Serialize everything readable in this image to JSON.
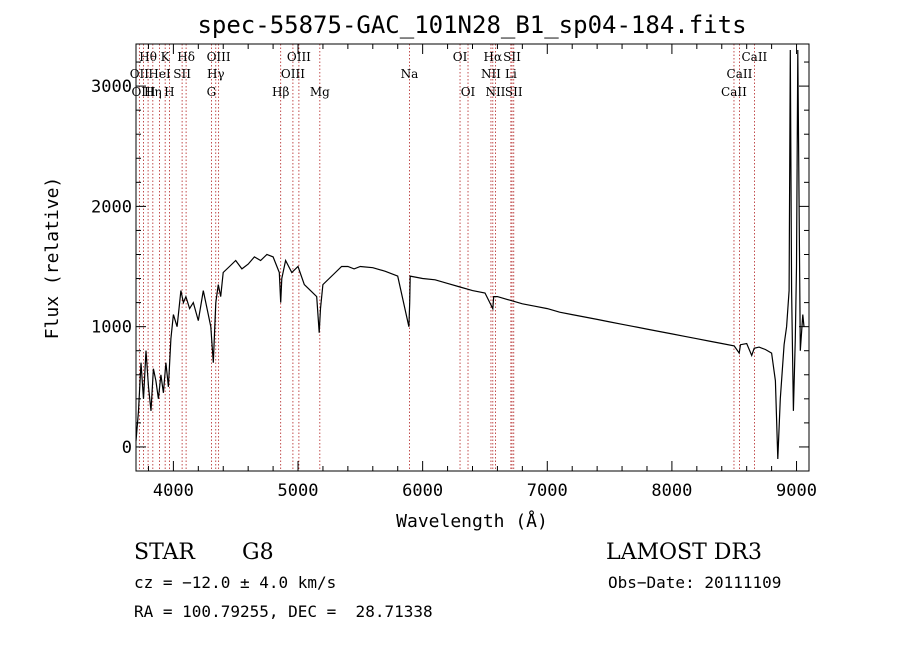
{
  "chart_data": {
    "type": "line",
    "title": "spec-55875-GAC_101N28_B1_sp04-184.fits",
    "xlabel": "Wavelength (Å)",
    "ylabel": "Flux (relative)",
    "xlim": [
      3700,
      9100
    ],
    "ylim": [
      -200,
      3350
    ],
    "xticks": [
      4000,
      5000,
      6000,
      7000,
      8000,
      9000
    ],
    "yticks": [
      0,
      1000,
      2000,
      3000
    ],
    "series": [
      {
        "name": "spectrum",
        "x": [
          3700,
          3720,
          3740,
          3760,
          3780,
          3800,
          3820,
          3840,
          3860,
          3880,
          3900,
          3920,
          3940,
          3960,
          3980,
          4000,
          4030,
          4060,
          4080,
          4100,
          4130,
          4160,
          4200,
          4240,
          4280,
          4300,
          4320,
          4340,
          4360,
          4380,
          4400,
          4450,
          4500,
          4550,
          4600,
          4650,
          4700,
          4750,
          4800,
          4850,
          4861,
          4870,
          4900,
          4950,
          5000,
          5050,
          5100,
          5150,
          5170,
          5180,
          5200,
          5250,
          5300,
          5350,
          5400,
          5450,
          5500,
          5600,
          5700,
          5800,
          5890,
          5896,
          5900,
          6000,
          6100,
          6200,
          6300,
          6400,
          6500,
          6563,
          6570,
          6600,
          6700,
          6800,
          6900,
          7000,
          7100,
          7200,
          7300,
          7400,
          7500,
          7600,
          7700,
          7800,
          7900,
          8000,
          8100,
          8200,
          8300,
          8400,
          8500,
          8540,
          8550,
          8600,
          8640,
          8660,
          8700,
          8750,
          8800,
          8830,
          8850,
          8870,
          8900,
          8920,
          8940,
          8950,
          8960,
          8975,
          8990,
          9000,
          9010,
          9030,
          9050,
          9060
        ],
        "y": [
          50,
          300,
          700,
          400,
          800,
          500,
          300,
          650,
          550,
          400,
          600,
          450,
          700,
          500,
          900,
          1100,
          1000,
          1300,
          1200,
          1250,
          1150,
          1200,
          1050,
          1300,
          1100,
          1000,
          700,
          1200,
          1350,
          1250,
          1450,
          1500,
          1550,
          1480,
          1520,
          1580,
          1550,
          1600,
          1580,
          1450,
          1200,
          1400,
          1550,
          1450,
          1500,
          1350,
          1300,
          1250,
          950,
          1150,
          1350,
          1400,
          1450,
          1500,
          1500,
          1480,
          1500,
          1490,
          1460,
          1420,
          1000,
          1200,
          1420,
          1400,
          1390,
          1360,
          1330,
          1300,
          1280,
          1150,
          1250,
          1250,
          1220,
          1190,
          1170,
          1150,
          1120,
          1100,
          1080,
          1060,
          1040,
          1020,
          1000,
          980,
          960,
          940,
          920,
          900,
          880,
          860,
          840,
          780,
          850,
          860,
          760,
          820,
          830,
          810,
          780,
          550,
          -100,
          400,
          850,
          1000,
          1300,
          3300,
          1300,
          300,
          900,
          1500,
          3300,
          800,
          1100,
          1000
        ]
      }
    ],
    "emission_lines": [
      {
        "label": "Hθ",
        "x": 3797,
        "row": 0
      },
      {
        "label": "OII",
        "x": 3727,
        "row": 1
      },
      {
        "label": "OIII",
        "x": 3760,
        "row": 2
      },
      {
        "label": "Hη",
        "x": 3835,
        "row": 2
      },
      {
        "label": "K",
        "x": 3934,
        "row": 0
      },
      {
        "label": "HeI",
        "x": 3889,
        "row": 1
      },
      {
        "label": "H",
        "x": 3968,
        "row": 2
      },
      {
        "label": "SII",
        "x": 4070,
        "row": 1
      },
      {
        "label": "Hδ",
        "x": 4102,
        "row": 0
      },
      {
        "label": "OIII",
        "x": 4363,
        "row": 0
      },
      {
        "label": "Hγ",
        "x": 4340,
        "row": 1
      },
      {
        "label": "G",
        "x": 4305,
        "row": 2
      },
      {
        "label": "OIII",
        "x": 5007,
        "row": 0
      },
      {
        "label": "OIII",
        "x": 4959,
        "row": 1
      },
      {
        "label": "Hβ",
        "x": 4861,
        "row": 2
      },
      {
        "label": "Mg",
        "x": 5175,
        "row": 2
      },
      {
        "label": "Na",
        "x": 5894,
        "row": 1
      },
      {
        "label": "OI",
        "x": 6300,
        "row": 0
      },
      {
        "label": "OI",
        "x": 6364,
        "row": 2
      },
      {
        "label": "Hα",
        "x": 6563,
        "row": 0
      },
      {
        "label": "NII",
        "x": 6548,
        "row": 1
      },
      {
        "label": "NII",
        "x": 6584,
        "row": 2
      },
      {
        "label": "SII",
        "x": 6717,
        "row": 0
      },
      {
        "label": "Li",
        "x": 6708,
        "row": 1
      },
      {
        "label": "SII",
        "x": 6731,
        "row": 2
      },
      {
        "label": "CaII",
        "x": 8662,
        "row": 0
      },
      {
        "label": "CaII",
        "x": 8542,
        "row": 1
      },
      {
        "label": "CaII",
        "x": 8498,
        "row": 2
      }
    ]
  },
  "info": {
    "class_label": "STAR",
    "subclass": "G8",
    "survey": "LAMOST DR3",
    "redshift": "cz = −12.0 ± 4.0 km/s",
    "obs_date": "Obs−Date: 20111109",
    "coords": "RA = 100.79255, DEC =  28.71338"
  },
  "colors": {
    "line": "#000000",
    "marker_lines": "#b22222"
  }
}
